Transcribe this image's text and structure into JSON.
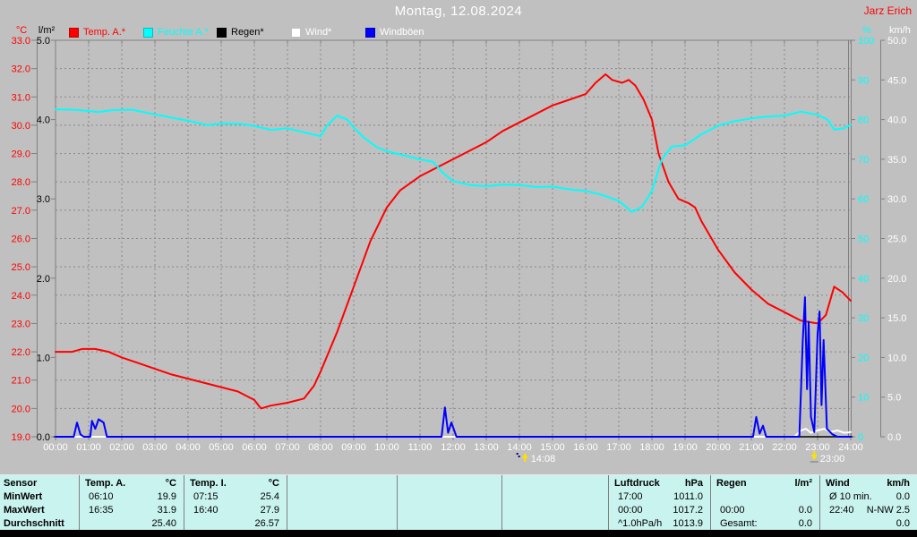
{
  "header": {
    "title": "Montag, 12.08.2024",
    "station": "Jarz Erich"
  },
  "legend": [
    {
      "label": "Temp. A.*",
      "swatch": "#ff0000",
      "text_color": "#ff0000"
    },
    {
      "label": "Feuchte A.*",
      "swatch": "#00ffff",
      "text_color": "#00ffff"
    },
    {
      "label": "Regen*",
      "swatch": "#000000",
      "text_color": "#000000"
    },
    {
      "label": "Wind*",
      "swatch": "#ffffff",
      "text_color": "#ffffff"
    },
    {
      "label": "Windböen",
      "swatch": "#0000ff",
      "text_color": "#ffffff"
    }
  ],
  "axes": {
    "temp": {
      "header": "°C",
      "color": "#ff0000",
      "min": 19,
      "max": 33,
      "ticks": [
        "33.0",
        "32.0",
        "31.0",
        "30.0",
        "29.0",
        "28.0",
        "27.0",
        "26.0",
        "25.0",
        "24.0",
        "23.0",
        "22.0",
        "21.0",
        "20.0",
        "19.0"
      ]
    },
    "rain": {
      "header": "l/m²",
      "color": "#000000",
      "min": 0,
      "max": 5,
      "ticks": [
        "5.0",
        "4.0",
        "3.0",
        "2.0",
        "1.0",
        "0.0"
      ]
    },
    "humidity": {
      "header": "%",
      "color": "#00ffff",
      "min": 0,
      "max": 100,
      "ticks": [
        "100",
        "90",
        "80",
        "70",
        "60",
        "50",
        "40",
        "30",
        "20",
        "10",
        "0"
      ]
    },
    "wind": {
      "header": "km/h",
      "color": "#ffffff",
      "min": 0,
      "max": 50,
      "ticks": [
        "50.0",
        "45.0",
        "40.0",
        "35.0",
        "30.0",
        "25.0",
        "20.0",
        "15.0",
        "10.0",
        "5.0",
        "0.0"
      ]
    },
    "time": {
      "labels": [
        "00:00",
        "01:00",
        "02:00",
        "03:00",
        "04:00",
        "05:00",
        "06:00",
        "07:00",
        "08:00",
        "09:00",
        "10:00",
        "11:00",
        "12:00",
        "13:00",
        "14:00",
        "15:00",
        "16:00",
        "17:00",
        "18:00",
        "19:00",
        "20:00",
        "21:00",
        "22:00",
        "23:00",
        "24:00"
      ]
    }
  },
  "markers": [
    {
      "time": "14:08",
      "hour": 14.1,
      "icon": "event-up-marker"
    },
    {
      "time": "23:00",
      "hour": 22.83,
      "icon": "event-down-marker"
    }
  ],
  "chart_data": {
    "type": "line",
    "title": "Montag, 12.08.2024",
    "x_unit": "hour",
    "x_range": [
      0,
      24
    ],
    "grid": "dashed",
    "axes": {
      "temp_c": [
        19,
        33
      ],
      "rain_lm2": [
        0,
        5
      ],
      "humidity_pct": [
        0,
        100
      ],
      "wind_kmh": [
        0,
        50
      ]
    },
    "series": [
      {
        "name": "Temp. A.",
        "unit": "°C",
        "axis": "temp_c",
        "color": "#ff0000",
        "width": 2,
        "data": [
          [
            0,
            22.0
          ],
          [
            0.5,
            22.0
          ],
          [
            0.8,
            22.1
          ],
          [
            1.2,
            22.1
          ],
          [
            1.6,
            22.0
          ],
          [
            2,
            21.8
          ],
          [
            2.5,
            21.6
          ],
          [
            3,
            21.4
          ],
          [
            3.5,
            21.2
          ],
          [
            4,
            21.05
          ],
          [
            4.5,
            20.9
          ],
          [
            5,
            20.75
          ],
          [
            5.5,
            20.6
          ],
          [
            6,
            20.3
          ],
          [
            6.2,
            20.0
          ],
          [
            6.5,
            20.1
          ],
          [
            7,
            20.2
          ],
          [
            7.5,
            20.35
          ],
          [
            7.8,
            20.8
          ],
          [
            8,
            21.3
          ],
          [
            8.5,
            22.7
          ],
          [
            9,
            24.3
          ],
          [
            9.5,
            25.9
          ],
          [
            10,
            27.1
          ],
          [
            10.4,
            27.7
          ],
          [
            11,
            28.2
          ],
          [
            11.5,
            28.5
          ],
          [
            12,
            28.8
          ],
          [
            12.5,
            29.1
          ],
          [
            13,
            29.4
          ],
          [
            13.5,
            29.8
          ],
          [
            14,
            30.1
          ],
          [
            14.5,
            30.4
          ],
          [
            15,
            30.7
          ],
          [
            15.5,
            30.9
          ],
          [
            16,
            31.1
          ],
          [
            16.3,
            31.5
          ],
          [
            16.6,
            31.8
          ],
          [
            16.8,
            31.6
          ],
          [
            17.1,
            31.5
          ],
          [
            17.3,
            31.6
          ],
          [
            17.5,
            31.4
          ],
          [
            17.75,
            30.9
          ],
          [
            18,
            30.2
          ],
          [
            18.2,
            29.0
          ],
          [
            18.5,
            28.0
          ],
          [
            18.8,
            27.4
          ],
          [
            19.1,
            27.25
          ],
          [
            19.3,
            27.1
          ],
          [
            19.5,
            26.6
          ],
          [
            20,
            25.6
          ],
          [
            20.5,
            24.8
          ],
          [
            21,
            24.2
          ],
          [
            21.5,
            23.7
          ],
          [
            22,
            23.4
          ],
          [
            22.5,
            23.1
          ],
          [
            23,
            23.0
          ],
          [
            23.25,
            23.3
          ],
          [
            23.5,
            24.3
          ],
          [
            23.75,
            24.1
          ],
          [
            24,
            23.8
          ]
        ]
      },
      {
        "name": "Feuchte A.",
        "unit": "%",
        "axis": "humidity_pct",
        "color": "#00ffff",
        "width": 2,
        "data": [
          [
            0,
            82.6
          ],
          [
            0.5,
            82.5
          ],
          [
            1,
            82.2
          ],
          [
            1.3,
            81.9
          ],
          [
            1.7,
            82.4
          ],
          [
            2.3,
            82.5
          ],
          [
            3,
            81.3
          ],
          [
            3.5,
            80.5
          ],
          [
            4,
            79.7
          ],
          [
            4.6,
            78.6
          ],
          [
            5,
            79.0
          ],
          [
            5.6,
            78.9
          ],
          [
            6,
            78.4
          ],
          [
            6.5,
            77.4
          ],
          [
            7,
            77.8
          ],
          [
            7.5,
            76.8
          ],
          [
            8,
            75.8
          ],
          [
            8.2,
            78.5
          ],
          [
            8.5,
            81.0
          ],
          [
            8.8,
            80.0
          ],
          [
            9,
            78.0
          ],
          [
            9.3,
            75.5
          ],
          [
            9.7,
            73.0
          ],
          [
            10,
            72.0
          ],
          [
            10.5,
            71.0
          ],
          [
            11,
            70.0
          ],
          [
            11.4,
            69.3
          ],
          [
            11.7,
            66.5
          ],
          [
            12,
            64.5
          ],
          [
            12.5,
            63.5
          ],
          [
            13,
            63.2
          ],
          [
            13.5,
            63.6
          ],
          [
            14,
            63.5
          ],
          [
            14.5,
            63.0
          ],
          [
            15,
            63.1
          ],
          [
            15.6,
            62.3
          ],
          [
            16,
            62.0
          ],
          [
            16.5,
            61.0
          ],
          [
            17,
            59.5
          ],
          [
            17.4,
            56.7
          ],
          [
            17.7,
            58.0
          ],
          [
            18,
            62.0
          ],
          [
            18.3,
            70.0
          ],
          [
            18.6,
            73.2
          ],
          [
            19,
            73.5
          ],
          [
            19.5,
            76.3
          ],
          [
            20,
            78.5
          ],
          [
            20.5,
            79.6
          ],
          [
            21,
            80.3
          ],
          [
            21.5,
            80.8
          ],
          [
            22,
            81.0
          ],
          [
            22.5,
            82.0
          ],
          [
            23,
            81.2
          ],
          [
            23.3,
            80.0
          ],
          [
            23.5,
            77.5
          ],
          [
            23.8,
            77.8
          ],
          [
            24,
            78.7
          ]
        ]
      },
      {
        "name": "Regen",
        "unit": "l/m²",
        "axis": "rain_lm2",
        "color": "#000000",
        "width": 1,
        "data": [
          [
            0,
            0
          ],
          [
            24,
            0
          ]
        ]
      },
      {
        "name": "Wind",
        "unit": "km/h",
        "axis": "wind_kmh",
        "color": "#ffffff",
        "width": 2,
        "data": [
          [
            0,
            0
          ],
          [
            22.3,
            0
          ],
          [
            22.5,
            0.8
          ],
          [
            22.65,
            1.0
          ],
          [
            22.8,
            0.5
          ],
          [
            23.0,
            0.8
          ],
          [
            23.2,
            1.0
          ],
          [
            23.4,
            0.6
          ],
          [
            23.6,
            0.8
          ],
          [
            23.8,
            0.5
          ],
          [
            24,
            0.6
          ]
        ]
      },
      {
        "name": "Windböen",
        "unit": "km/h",
        "axis": "wind_kmh",
        "color": "#0000ff",
        "width": 2,
        "data": [
          [
            0,
            0
          ],
          [
            0.55,
            0
          ],
          [
            0.65,
            1.8
          ],
          [
            0.75,
            0.3
          ],
          [
            0.85,
            0
          ],
          [
            1.05,
            0
          ],
          [
            1.1,
            2.0
          ],
          [
            1.2,
            1.0
          ],
          [
            1.3,
            2.2
          ],
          [
            1.45,
            1.8
          ],
          [
            1.55,
            0
          ],
          [
            11.65,
            0
          ],
          [
            11.75,
            3.7
          ],
          [
            11.85,
            0.5
          ],
          [
            11.95,
            1.8
          ],
          [
            12.1,
            0
          ],
          [
            21.05,
            0
          ],
          [
            21.15,
            2.5
          ],
          [
            21.25,
            0.4
          ],
          [
            21.35,
            1.4
          ],
          [
            21.45,
            0
          ],
          [
            22.45,
            0
          ],
          [
            22.55,
            12.0
          ],
          [
            22.62,
            17.6
          ],
          [
            22.68,
            6.0
          ],
          [
            22.73,
            14.5
          ],
          [
            22.8,
            2.5
          ],
          [
            22.9,
            0.6
          ],
          [
            23.0,
            13.0
          ],
          [
            23.06,
            15.8
          ],
          [
            23.12,
            4.0
          ],
          [
            23.18,
            12.2
          ],
          [
            23.28,
            1.0
          ],
          [
            23.45,
            0.3
          ],
          [
            23.6,
            0
          ],
          [
            24,
            0
          ]
        ]
      }
    ]
  },
  "table": {
    "row_labels": [
      "Sensor",
      "MinWert",
      "MaxWert",
      "Durchschnitt"
    ],
    "columns": [
      {
        "name": "Temp. A.",
        "unit": "°C",
        "rows": [
          [
            "06:10",
            "19.9"
          ],
          [
            "16:35",
            "31.9"
          ],
          [
            "",
            "25.40"
          ]
        ]
      },
      {
        "name": "Temp. I.",
        "unit": "°C",
        "rows": [
          [
            "07:15",
            "25.4"
          ],
          [
            "16:40",
            "27.9"
          ],
          [
            "",
            "26.57"
          ]
        ]
      },
      {
        "name": "",
        "unit": "",
        "rows": [
          [
            "",
            ""
          ],
          [
            "",
            ""
          ],
          [
            "",
            ""
          ]
        ]
      },
      {
        "name": "",
        "unit": "",
        "rows": [
          [
            "",
            ""
          ],
          [
            "",
            ""
          ],
          [
            "",
            ""
          ]
        ]
      },
      {
        "name": "",
        "unit": "",
        "rows": [
          [
            "",
            ""
          ],
          [
            "",
            ""
          ],
          [
            "",
            ""
          ]
        ]
      },
      {
        "name": "Luftdruck",
        "unit": "hPa",
        "rows": [
          [
            "17:00",
            "1011.0"
          ],
          [
            "00:00",
            "1017.2"
          ],
          [
            "^1.0hPa/h",
            "1013.9"
          ]
        ]
      },
      {
        "name": "Regen",
        "unit": "l/m²",
        "rows": [
          [
            "",
            ""
          ],
          [
            "00:00",
            "0.0"
          ],
          [
            "Gesamt:",
            "0.0"
          ]
        ]
      },
      {
        "name": "Wind",
        "unit": "km/h",
        "rows": [
          [
            "Ø 10 min.",
            "0.0"
          ],
          [
            "22:40",
            "N-NW 2.5"
          ],
          [
            "",
            "0.0"
          ]
        ]
      }
    ]
  },
  "colors": {
    "background": "#c0c0c0",
    "grid": "#878787",
    "axis_line": "#808080",
    "x_axis": "#000000",
    "table_bg": "#c9f3ef",
    "title_text": "#ffffff",
    "time_label_text": "#ffffff",
    "marker_yellow": "#ffe000",
    "marker_navy": "#000080"
  }
}
